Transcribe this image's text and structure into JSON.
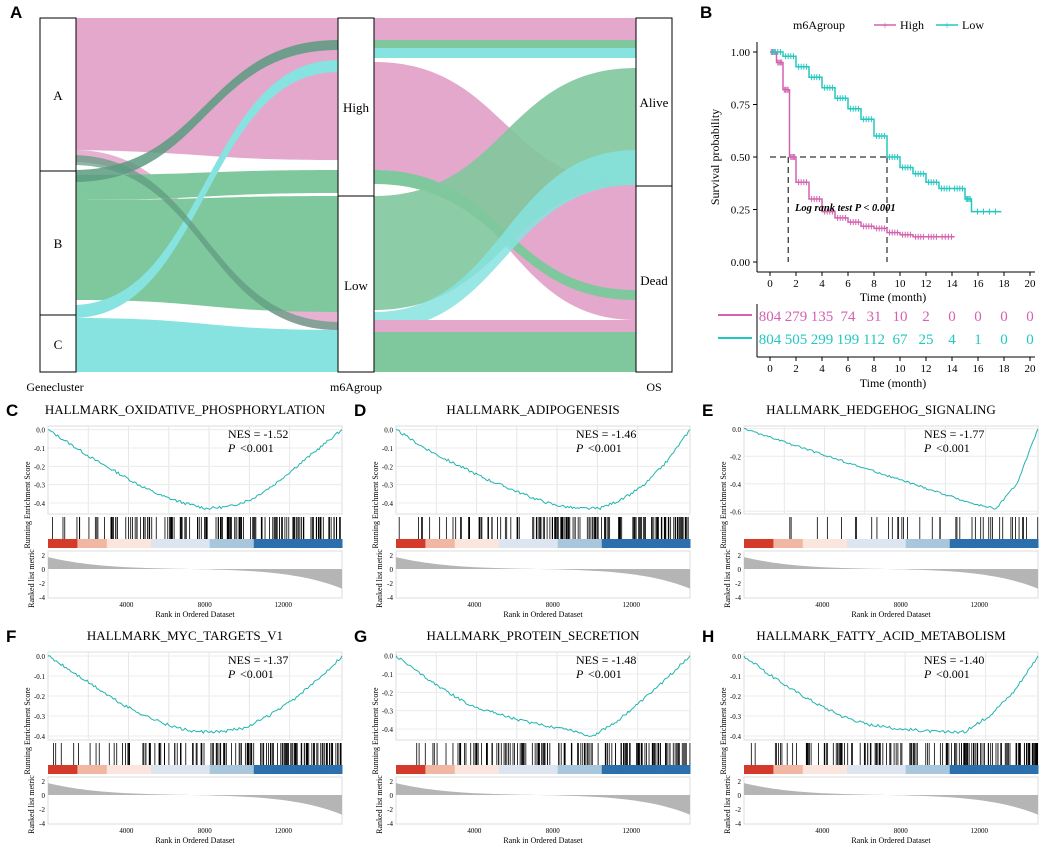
{
  "panel_labels": {
    "A": "A",
    "B": "B",
    "C": "C",
    "D": "D",
    "E": "E",
    "F": "F",
    "G": "G",
    "H": "H"
  },
  "colors": {
    "high": "#d462b0",
    "low": "#22c8c0",
    "alluvial_pink": "#e4a8cc",
    "alluvial_green": "#7fc79c",
    "alluvial_cyan": "#86e3e0",
    "alluvial_dark": "#5c9a80",
    "gsea_line": "#22b5b0",
    "density": "#b5b5b5",
    "heat_red": "#d43a2a",
    "heat_blue": "#2c6fad"
  },
  "sankey": {
    "axis_labels": [
      "Genecluster",
      "m6Agroup",
      "OS"
    ],
    "cluster_nodes": [
      "A",
      "B",
      "C"
    ],
    "group_nodes": [
      "High",
      "Low"
    ],
    "os_nodes": [
      "Alive",
      "Dead"
    ]
  },
  "chart_data": [
    {
      "panel": "B",
      "type": "line",
      "title": "",
      "legend_title": "m6Agroup",
      "series": [
        {
          "name": "High",
          "points": [
            [
              0,
              1.0
            ],
            [
              0.5,
              0.95
            ],
            [
              1,
              0.82
            ],
            [
              1.5,
              0.5
            ],
            [
              2,
              0.38
            ],
            [
              3,
              0.3
            ],
            [
              4,
              0.24
            ],
            [
              5,
              0.21
            ],
            [
              6,
              0.19
            ],
            [
              7,
              0.17
            ],
            [
              8,
              0.16
            ],
            [
              9,
              0.14
            ],
            [
              10,
              0.13
            ],
            [
              11,
              0.12
            ],
            [
              12,
              0.12
            ],
            [
              13,
              0.12
            ],
            [
              14.2,
              0.12
            ]
          ]
        },
        {
          "name": "Low",
          "points": [
            [
              0,
              1.0
            ],
            [
              1,
              0.98
            ],
            [
              2,
              0.93
            ],
            [
              3,
              0.88
            ],
            [
              4,
              0.83
            ],
            [
              5,
              0.78
            ],
            [
              6,
              0.73
            ],
            [
              7,
              0.68
            ],
            [
              8,
              0.6
            ],
            [
              9,
              0.5
            ],
            [
              10,
              0.45
            ],
            [
              11,
              0.42
            ],
            [
              12,
              0.38
            ],
            [
              13,
              0.35
            ],
            [
              14,
              0.35
            ],
            [
              15,
              0.3
            ],
            [
              15.5,
              0.24
            ],
            [
              17.8,
              0.24
            ]
          ]
        }
      ],
      "median": {
        "High": 1.4,
        "Low": 9.0,
        "y": 0.5
      },
      "annotation": "Log rank test P < 0.001",
      "xlabel": "Time (month)",
      "ylabel": "Survival probability",
      "xticks": [
        "0",
        "2",
        "4",
        "6",
        "8",
        "10",
        "12",
        "14",
        "16",
        "18",
        "20"
      ],
      "yticks": [
        "0.00",
        "0.25",
        "0.50",
        "0.75",
        "1.00"
      ],
      "xlim": [
        0,
        20
      ],
      "ylim": [
        0,
        1
      ],
      "risk_table": {
        "High": [
          "804",
          "279",
          "135",
          "74",
          "31",
          "10",
          "2",
          "0",
          "0",
          "0",
          "0"
        ],
        "Low": [
          "804",
          "505",
          "299",
          "199",
          "112",
          "67",
          "25",
          "4",
          "1",
          "0",
          "0"
        ],
        "xlabel": "Time (month)"
      }
    },
    {
      "panel": "C",
      "type": "line",
      "title": "HALLMARK_OXIDATIVE_PHOSPHORYLATION",
      "nes": "NES = -1.52",
      "p": "P",
      "pval": "<0.001",
      "yticks": [
        "0.0",
        "-0.1",
        "-0.2",
        "-0.3",
        "-0.4"
      ],
      "ylim": [
        -0.46,
        0.02
      ],
      "es": [
        0,
        -0.08,
        -0.16,
        -0.23,
        -0.3,
        -0.36,
        -0.4,
        -0.43,
        -0.42,
        -0.38,
        -0.3,
        -0.2,
        -0.1,
        0
      ]
    },
    {
      "panel": "D",
      "type": "line",
      "title": "HALLMARK_ADIPOGENESIS",
      "nes": "NES = -1.46",
      "p": "P",
      "pval": "<0.001",
      "yticks": [
        "0.0",
        "-0.1",
        "-0.2",
        "-0.3",
        "-0.4"
      ],
      "ylim": [
        -0.46,
        0.02
      ],
      "es": [
        0,
        -0.08,
        -0.15,
        -0.21,
        -0.27,
        -0.32,
        -0.37,
        -0.41,
        -0.43,
        -0.43,
        -0.38,
        -0.3,
        -0.17,
        0
      ]
    },
    {
      "panel": "E",
      "type": "line",
      "title": "HALLMARK_HEDGEHOG_SIGNALING",
      "nes": "NES = -1.77",
      "p": "P",
      "pval": "<0.001",
      "yticks": [
        "0.0",
        "-0.2",
        "-0.4",
        "-0.6"
      ],
      "ylim": [
        -0.62,
        0.02
      ],
      "es": [
        0,
        -0.05,
        -0.1,
        -0.15,
        -0.2,
        -0.25,
        -0.3,
        -0.35,
        -0.4,
        -0.45,
        -0.5,
        -0.55,
        -0.58,
        -0.4,
        0
      ]
    },
    {
      "panel": "F",
      "type": "line",
      "title": "HALLMARK_MYC_TARGETS_V1",
      "nes": "NES = -1.37",
      "p": "P",
      "pval": "<0.001",
      "yticks": [
        "0.0",
        "-0.1",
        "-0.2",
        "-0.3",
        "-0.4"
      ],
      "ylim": [
        -0.42,
        0.02
      ],
      "es": [
        0,
        -0.08,
        -0.16,
        -0.24,
        -0.3,
        -0.35,
        -0.38,
        -0.38,
        -0.36,
        -0.3,
        -0.22,
        -0.12,
        0
      ]
    },
    {
      "panel": "G",
      "type": "line",
      "title": "HALLMARK_PROTEIN_SECRETION",
      "nes": "NES = -1.48",
      "p": "P",
      "pval": "<0.001",
      "yticks": [
        "0.0",
        "-0.1",
        "-0.2",
        "-0.3",
        "-0.4"
      ],
      "ylim": [
        -0.46,
        0.02
      ],
      "es": [
        0,
        -0.1,
        -0.19,
        -0.27,
        -0.31,
        -0.35,
        -0.38,
        -0.4,
        -0.44,
        -0.36,
        -0.25,
        -0.13,
        0
      ]
    },
    {
      "panel": "H",
      "type": "line",
      "title": "HALLMARK_FATTY_ACID_METABOLISM",
      "nes": "NES = -1.40",
      "p": "P",
      "pval": "<0.001",
      "yticks": [
        "0.0",
        "-0.1",
        "-0.2",
        "-0.3",
        "-0.4"
      ],
      "ylim": [
        -0.42,
        0.02
      ],
      "es": [
        0,
        -0.09,
        -0.17,
        -0.24,
        -0.3,
        -0.34,
        -0.36,
        -0.37,
        -0.38,
        -0.38,
        -0.3,
        -0.18,
        0
      ]
    }
  ],
  "gsea_common": {
    "ylabel_es": "Running Enrichment Score",
    "ylabel_rank": "Ranked list metric",
    "xlabel": "Rank in Ordered Dataset",
    "xticks": [
      "4000",
      "8000",
      "12000"
    ],
    "rank_yticks": [
      "2",
      "0",
      "-2",
      "-4"
    ]
  }
}
